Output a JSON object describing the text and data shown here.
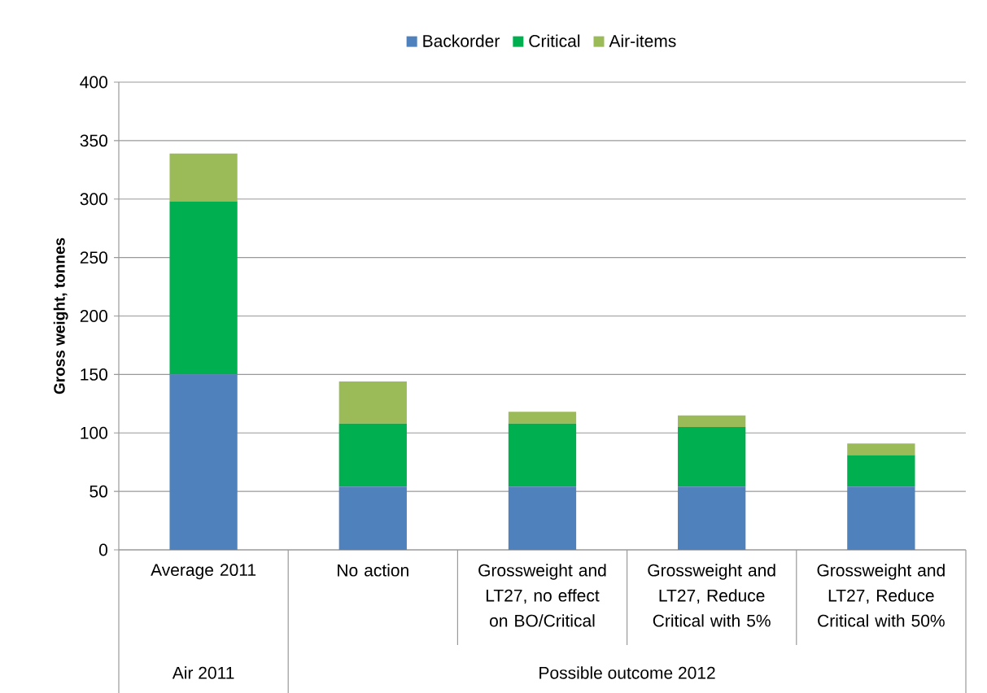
{
  "chart_data": {
    "type": "bar",
    "stacked": true,
    "ylabel": "Gross weight, tonnes",
    "categories": [
      "Average 2011",
      "No action",
      "Grossweight and LT27, no effect on BO/Critical",
      "Grossweight and LT27, Reduce Critical with 5%",
      "Grossweight and LT27, Reduce Critical with 50%"
    ],
    "series": [
      {
        "name": "Backorder",
        "color": "#4f81bd",
        "values": [
          150,
          54,
          54,
          54,
          54
        ]
      },
      {
        "name": "Critical",
        "color": "#00b050",
        "values": [
          148,
          54,
          54,
          51,
          27
        ]
      },
      {
        "name": "Air-items",
        "color": "#9bbb59",
        "values": [
          41,
          36,
          10,
          10,
          10
        ]
      }
    ],
    "ylim": [
      0,
      400
    ],
    "yticks": [
      0,
      50,
      100,
      150,
      200,
      250,
      300,
      350,
      400
    ],
    "grid": "y",
    "legend": "top",
    "annotations": [
      "Air 2011",
      "Possible outcome 2012"
    ]
  }
}
